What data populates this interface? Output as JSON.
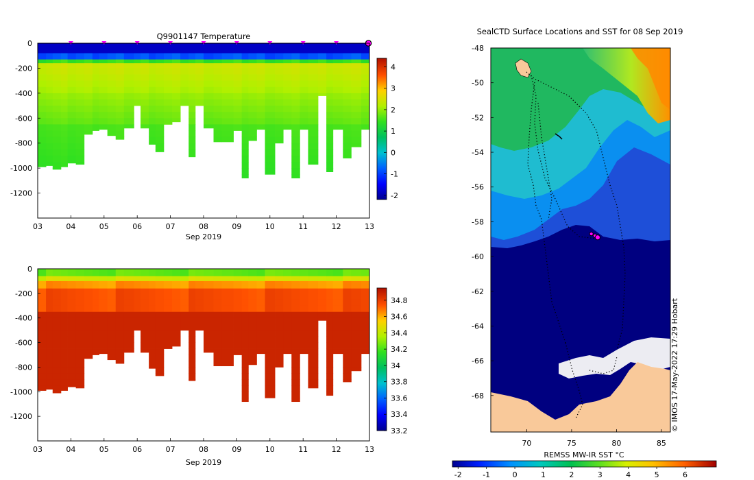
{
  "chart_data": [
    {
      "type": "heatmap",
      "id": "temperature",
      "title": "Q9901147  Temperature",
      "xlabel": "Sep 2019",
      "ylabel": "",
      "x_ticks": [
        "03",
        "04",
        "05",
        "06",
        "07",
        "08",
        "09",
        "10",
        "11",
        "12",
        "13"
      ],
      "x_range_days": [
        3,
        13
      ],
      "y_ticks": [
        "0",
        "-200",
        "-400",
        "-600",
        "-800",
        "-1000",
        "-1200"
      ],
      "y_range": [
        -1400,
        0
      ],
      "colorbar": {
        "ticks": [
          "-2",
          "-1",
          "0",
          "1",
          "2",
          "3",
          "4"
        ],
        "range": [
          -2.2,
          4.4
        ]
      },
      "surface_markers_days": [
        4,
        5,
        6,
        7,
        8,
        9,
        10,
        11,
        12
      ],
      "last_marker_day": 13,
      "profiles": {
        "x_start": [
          3.0,
          3.25,
          3.45,
          3.7,
          3.9,
          4.15,
          4.4,
          4.65,
          4.85,
          5.1,
          5.35,
          5.6,
          5.9,
          6.1,
          6.35,
          6.55,
          6.8,
          7.05,
          7.3,
          7.55,
          7.75,
          8.0,
          8.3,
          8.55,
          8.9,
          9.15,
          9.35,
          9.6,
          9.85,
          10.15,
          10.4,
          10.65,
          10.9,
          11.15,
          11.45,
          11.7,
          11.9,
          12.2,
          12.45,
          12.75
        ],
        "max_depth": [
          -990,
          -980,
          -1010,
          -990,
          -960,
          -970,
          -730,
          -700,
          -690,
          -740,
          -770,
          -680,
          -500,
          -680,
          -810,
          -870,
          -650,
          -630,
          -500,
          -910,
          -500,
          -680,
          -790,
          -790,
          -700,
          -1080,
          -780,
          -690,
          -1050,
          -800,
          -690,
          -1080,
          -690,
          -970,
          -420,
          -1030,
          -690,
          -920,
          -830,
          -690
        ]
      }
    },
    {
      "type": "heatmap",
      "id": "salinity",
      "title": "",
      "xlabel": "Sep 2019",
      "ylabel": "",
      "x_ticks": [
        "03",
        "04",
        "05",
        "06",
        "07",
        "08",
        "09",
        "10",
        "11",
        "12",
        "13"
      ],
      "x_range_days": [
        3,
        13
      ],
      "y_ticks": [
        "0",
        "-200",
        "-400",
        "-600",
        "-800",
        "-1000",
        "-1200"
      ],
      "y_range": [
        -1400,
        0
      ],
      "colorbar": {
        "ticks": [
          "33.2",
          "33.4",
          "33.6",
          "33.8",
          "34",
          "34.2",
          "34.4",
          "34.6",
          "34.8"
        ],
        "range": [
          33.2,
          34.95
        ]
      }
    },
    {
      "type": "heatmap",
      "id": "sst_map",
      "title": "SealCTD Surface Locations and SST for 08 Sep 2019",
      "xlabel": "",
      "x_ticks": [
        "70",
        "75",
        "80",
        "85"
      ],
      "lon_range": [
        66,
        86
      ],
      "y_ticks": [
        "-48",
        "-50",
        "-52",
        "-54",
        "-56",
        "-58",
        "-60",
        "-62",
        "-64",
        "-66",
        "-68"
      ],
      "lat_range": [
        -70.1,
        -48
      ],
      "colorbar": {
        "label": "REMSS MW-IR SST °C",
        "ticks": [
          "-2",
          "-1",
          "0",
          "1",
          "2",
          "3",
          "4",
          "5",
          "6"
        ],
        "range": [
          -2.2,
          7.1
        ]
      },
      "credit": "© IMOS 17-May-2022 17:29 Hobart",
      "current_positions": [
        [
          77.2,
          -58.7
        ],
        [
          77.6,
          -58.8
        ],
        [
          77.9,
          -58.9
        ]
      ]
    }
  ],
  "colors": {
    "land": "#f9c99a",
    "ice": "#ececf2",
    "deep_blue": "#000080",
    "marker": "#ff00ff"
  }
}
